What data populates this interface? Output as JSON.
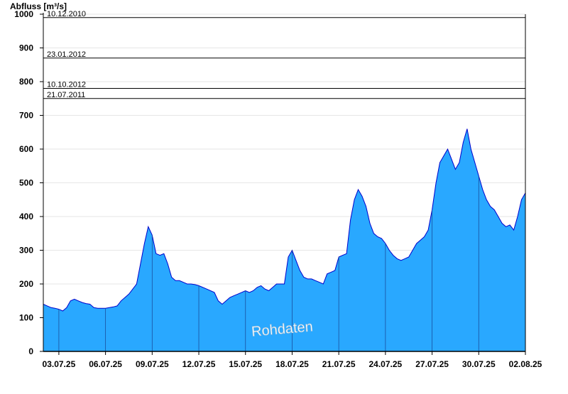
{
  "chart_data": {
    "type": "area",
    "ylabel": "Abfluss [m³/s]",
    "xlabel": "",
    "ylim": [
      0,
      1000
    ],
    "y_ticks": [
      "0",
      "100",
      "200",
      "300",
      "400",
      "500",
      "600",
      "700",
      "800",
      "900",
      "1000"
    ],
    "x_range": [
      "2025-07-02T00:00",
      "2025-08-02T00:00"
    ],
    "x_ticks": [
      "03.07.25",
      "06.07.25",
      "09.07.25",
      "12.07.25",
      "15.07.25",
      "18.07.25",
      "21.07.25",
      "24.07.25",
      "27.07.25",
      "30.07.25",
      "02.08.25"
    ],
    "x_tick_dates": [
      "2025-07-03",
      "2025-07-06",
      "2025-07-09",
      "2025-07-12",
      "2025-07-15",
      "2025-07-18",
      "2025-07-21",
      "2025-07-24",
      "2025-07-27",
      "2025-07-30",
      "2025-08-02"
    ],
    "grid": "horizontal",
    "series": [
      {
        "name": "Rohdaten",
        "x": [
          "2025-07-02T00:00",
          "2025-07-02T06:00",
          "2025-07-02T12:00",
          "2025-07-02T18:00",
          "2025-07-03T00:00",
          "2025-07-03T06:00",
          "2025-07-03T12:00",
          "2025-07-03T18:00",
          "2025-07-04T00:00",
          "2025-07-04T06:00",
          "2025-07-04T12:00",
          "2025-07-04T18:00",
          "2025-07-05T00:00",
          "2025-07-05T06:00",
          "2025-07-05T12:00",
          "2025-07-05T18:00",
          "2025-07-06T00:00",
          "2025-07-06T06:00",
          "2025-07-06T12:00",
          "2025-07-06T18:00",
          "2025-07-07T00:00",
          "2025-07-07T12:00",
          "2025-07-08T00:00",
          "2025-07-08T06:00",
          "2025-07-08T12:00",
          "2025-07-08T18:00",
          "2025-07-09T00:00",
          "2025-07-09T06:00",
          "2025-07-09T12:00",
          "2025-07-09T18:00",
          "2025-07-10T00:00",
          "2025-07-10T06:00",
          "2025-07-10T12:00",
          "2025-07-10T18:00",
          "2025-07-11T00:00",
          "2025-07-11T06:00",
          "2025-07-11T12:00",
          "2025-07-11T18:00",
          "2025-07-12T00:00",
          "2025-07-12T12:00",
          "2025-07-13T00:00",
          "2025-07-13T06:00",
          "2025-07-13T12:00",
          "2025-07-13T18:00",
          "2025-07-14T00:00",
          "2025-07-14T06:00",
          "2025-07-14T12:00",
          "2025-07-14T18:00",
          "2025-07-15T00:00",
          "2025-07-15T06:00",
          "2025-07-15T12:00",
          "2025-07-15T18:00",
          "2025-07-16T00:00",
          "2025-07-16T06:00",
          "2025-07-16T12:00",
          "2025-07-16T18:00",
          "2025-07-17T00:00",
          "2025-07-17T06:00",
          "2025-07-17T12:00",
          "2025-07-17T18:00",
          "2025-07-18T00:00",
          "2025-07-18T06:00",
          "2025-07-18T12:00",
          "2025-07-18T18:00",
          "2025-07-19T00:00",
          "2025-07-19T06:00",
          "2025-07-19T12:00",
          "2025-07-19T18:00",
          "2025-07-20T00:00",
          "2025-07-20T06:00",
          "2025-07-20T12:00",
          "2025-07-20T18:00",
          "2025-07-21T00:00",
          "2025-07-21T06:00",
          "2025-07-21T12:00",
          "2025-07-21T18:00",
          "2025-07-22T00:00",
          "2025-07-22T06:00",
          "2025-07-22T12:00",
          "2025-07-22T18:00",
          "2025-07-23T00:00",
          "2025-07-23T06:00",
          "2025-07-23T12:00",
          "2025-07-23T18:00",
          "2025-07-24T00:00",
          "2025-07-24T06:00",
          "2025-07-24T12:00",
          "2025-07-24T18:00",
          "2025-07-25T00:00",
          "2025-07-25T06:00",
          "2025-07-25T12:00",
          "2025-07-25T18:00",
          "2025-07-26T00:00",
          "2025-07-26T06:00",
          "2025-07-26T12:00",
          "2025-07-26T18:00",
          "2025-07-27T00:00",
          "2025-07-27T06:00",
          "2025-07-27T12:00",
          "2025-07-27T18:00",
          "2025-07-28T00:00",
          "2025-07-28T06:00",
          "2025-07-28T12:00",
          "2025-07-28T18:00",
          "2025-07-29T00:00",
          "2025-07-29T06:00",
          "2025-07-29T12:00",
          "2025-07-29T18:00",
          "2025-07-30T00:00",
          "2025-07-30T06:00",
          "2025-07-30T12:00",
          "2025-07-30T18:00",
          "2025-07-31T00:00",
          "2025-07-31T06:00",
          "2025-07-31T12:00",
          "2025-07-31T18:00",
          "2025-08-01T00:00",
          "2025-08-01T06:00",
          "2025-08-01T12:00",
          "2025-08-01T18:00",
          "2025-08-02T00:00"
        ],
        "y": [
          140,
          135,
          130,
          128,
          125,
          120,
          130,
          150,
          155,
          150,
          145,
          142,
          140,
          130,
          128,
          128,
          128,
          130,
          132,
          135,
          150,
          170,
          200,
          260,
          320,
          370,
          345,
          290,
          285,
          290,
          260,
          220,
          210,
          210,
          205,
          200,
          200,
          198,
          195,
          185,
          175,
          150,
          140,
          150,
          160,
          165,
          170,
          175,
          180,
          175,
          180,
          190,
          195,
          185,
          180,
          190,
          200,
          200,
          200,
          280,
          300,
          270,
          240,
          220,
          215,
          215,
          210,
          205,
          200,
          230,
          235,
          240,
          280,
          285,
          290,
          390,
          450,
          480,
          460,
          430,
          380,
          350,
          340,
          335,
          320,
          300,
          285,
          275,
          270,
          275,
          280,
          300,
          320,
          330,
          340,
          360,
          420,
          500,
          560,
          580,
          600,
          570,
          540,
          560,
          620,
          660,
          600,
          560,
          520,
          480,
          450,
          430,
          420,
          400,
          380,
          370,
          375,
          360,
          400,
          450,
          470
        ]
      }
    ],
    "reference_lines": [
      {
        "label": "10.12.2010",
        "value": 990
      },
      {
        "label": "23.01.2012",
        "value": 870
      },
      {
        "label": "10.10.2012",
        "value": 780
      },
      {
        "label": "21.07.2011",
        "value": 750
      }
    ],
    "annotation": "Rohdaten",
    "colors": {
      "fill": "#29a8ff",
      "stroke": "#0000cc",
      "axis": "#000000",
      "grid": "#e6e6e6",
      "day_lines": "#1a4f9e"
    }
  }
}
